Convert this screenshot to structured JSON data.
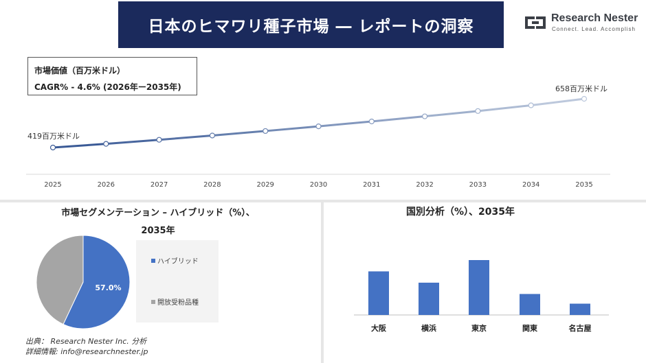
{
  "header": {
    "title": "日本のヒマワリ種子市場 ― レポートの洞察",
    "logo_name": "Research Nester",
    "logo_tagline": "Connect. Lead. Accomplish"
  },
  "info_box": {
    "line1": "市場価値（百万米ドル）",
    "line2": "CAGR% - 4.6% (2026年ー2035年)"
  },
  "pie": {
    "title_line1": "市場セグメンテーション – ハイブリッド（%）、",
    "title_line2": "2035年",
    "center_label": "57.0%"
  },
  "bar": {
    "title": "国別分析（%）、2035年"
  },
  "footer": {
    "source": "出典： Research Nester Inc. 分析",
    "details": "詳細情報: info@researchnester.jp"
  },
  "colors": {
    "title_bg": "#1b2a5c",
    "line_start": "#3a5a96",
    "line_end": "#bcc8dc",
    "hybrid": "#4472c4",
    "open": "#a5a5a5",
    "bar": "#4472c4"
  },
  "chart_data": [
    {
      "type": "line",
      "x": [
        2025,
        2026,
        2027,
        2028,
        2029,
        2030,
        2031,
        2032,
        2033,
        2034,
        2035
      ],
      "values": [
        419,
        437,
        457,
        478,
        500,
        523,
        547,
        572,
        598,
        626,
        658
      ],
      "start_label": "419百万米ドル",
      "end_label": "658百万米ドル",
      "title": "",
      "xlabel": "",
      "ylabel": "",
      "grid": false
    },
    {
      "type": "pie",
      "categories": [
        "ハイブリッド",
        "開放受粉品種"
      ],
      "values": [
        57.0,
        43.0
      ],
      "data_labels": [
        "57.0%",
        ""
      ],
      "legend": "right"
    },
    {
      "type": "bar",
      "categories": [
        "大阪",
        "横浜",
        "東京",
        "関東",
        "名古屋"
      ],
      "values": [
        27,
        20,
        34,
        13,
        7
      ],
      "grid": false
    }
  ]
}
